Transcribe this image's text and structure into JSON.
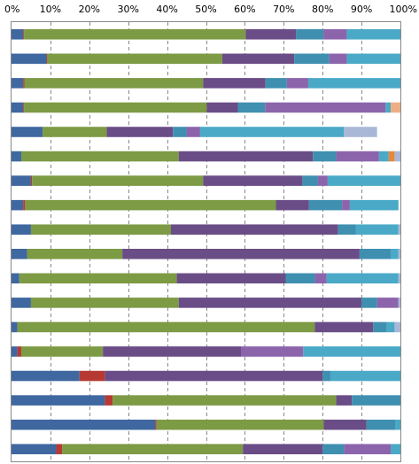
{
  "chart_data": {
    "type": "bar",
    "orientation": "horizontal",
    "stacked": true,
    "percent": true,
    "title": "",
    "xlabel": "",
    "ylabel": "",
    "xlim": [
      0,
      100
    ],
    "x_ticks": [
      0,
      10,
      20,
      30,
      40,
      50,
      60,
      70,
      80,
      90,
      100
    ],
    "x_tick_labels": [
      "0%",
      "10%",
      "20%",
      "30%",
      "40%",
      "50%",
      "60%",
      "70%",
      "80%",
      "90%",
      "100%"
    ],
    "grid": true,
    "legend": false,
    "category_count": 18,
    "colors": [
      "#3f67a0",
      "#b63a33",
      "#7d9a45",
      "#6a4d86",
      "#3f8fb0",
      "#8c64ac",
      "#4aa9c6",
      "#eeae85",
      "#e8873a",
      "#a9b8d6"
    ],
    "series": [
      {
        "values": [
          3,
          9,
          3,
          3,
          8,
          2.5,
          5,
          3,
          5,
          4,
          2,
          5,
          1.5,
          1.5,
          17.5,
          24,
          37,
          11.5
        ]
      },
      {
        "values": [
          0.2,
          0.2,
          0.3,
          0.2,
          0,
          0,
          0.3,
          0.5,
          0,
          0,
          0,
          0,
          0,
          1,
          6.5,
          2,
          0.3,
          1.5
        ]
      },
      {
        "values": [
          57,
          45,
          46,
          47,
          16.5,
          40.5,
          44,
          64.5,
          36,
          24.5,
          40.5,
          38,
          76.5,
          21,
          0,
          57.5,
          43,
          46.5
        ]
      },
      {
        "values": [
          13,
          18.5,
          16,
          8,
          17,
          34.5,
          25.5,
          8.5,
          43,
          61,
          28,
          47,
          15,
          35.5,
          56,
          4,
          11,
          20.5
        ]
      },
      {
        "values": [
          7,
          9,
          5.5,
          7,
          3.5,
          6,
          4,
          8.5,
          4.5,
          8,
          7.5,
          4,
          3.5,
          0,
          2,
          12.5,
          7.5,
          5.5
        ]
      },
      {
        "values": [
          6,
          4.5,
          5.5,
          31,
          3.5,
          11,
          2.5,
          2,
          0,
          0,
          3,
          5.5,
          0,
          16,
          0,
          0,
          0,
          12
        ]
      },
      {
        "values": [
          13.8,
          18.8,
          23.7,
          1.3,
          37,
          2.5,
          18.7,
          12.5,
          11,
          2,
          18.5,
          0,
          2,
          25,
          18,
          0,
          1.2,
          2.5
        ]
      },
      {
        "values": [
          0,
          0,
          0,
          2.5,
          0,
          0,
          0,
          0,
          0,
          0,
          0,
          0,
          0,
          0,
          0,
          0,
          0,
          0
        ]
      },
      {
        "values": [
          0,
          0,
          0,
          0,
          0,
          1.5,
          0,
          0,
          0,
          0,
          0,
          0,
          0,
          0,
          0,
          0,
          0,
          0
        ]
      },
      {
        "values": [
          0,
          0,
          0,
          0,
          8.5,
          1.5,
          0,
          0,
          0.5,
          0.5,
          0.5,
          0.5,
          1.5,
          0,
          0,
          0,
          0,
          0
        ]
      }
    ]
  }
}
